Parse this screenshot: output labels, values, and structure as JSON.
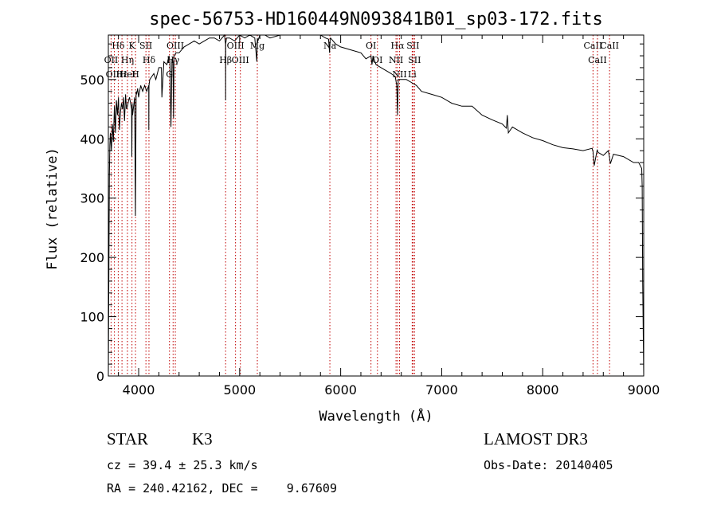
{
  "chart_data": {
    "type": "line",
    "title": "spec-56753-HD160449N093841B01_sp03-172.fits",
    "xlabel": "Wavelength (Å)",
    "ylabel": "Flux (relative)",
    "xlim": [
      3700,
      9000
    ],
    "ylim": [
      0,
      575
    ],
    "xticks": [
      4000,
      5000,
      6000,
      7000,
      8000,
      9000
    ],
    "yticks": [
      0,
      100,
      200,
      300,
      400,
      500
    ],
    "series": [
      {
        "name": "spectrum",
        "x": [
          3700,
          3705,
          3710,
          3715,
          3720,
          3730,
          3740,
          3750,
          3760,
          3770,
          3780,
          3790,
          3800,
          3810,
          3820,
          3830,
          3840,
          3850,
          3860,
          3870,
          3880,
          3890,
          3900,
          3910,
          3920,
          3930,
          3933,
          3936,
          3940,
          3950,
          3960,
          3968,
          3975,
          3980,
          3990,
          4000,
          4020,
          4040,
          4060,
          4080,
          4100,
          4101,
          4102,
          4110,
          4130,
          4150,
          4170,
          4200,
          4225,
          4230,
          4250,
          4280,
          4300,
          4310,
          4320,
          4330,
          4340,
          4345,
          4350,
          4370,
          4400,
          4450,
          4500,
          4550,
          4600,
          4650,
          4700,
          4750,
          4800,
          4850,
          4860,
          4861,
          4862,
          4870,
          4900,
          4950,
          5000,
          5050,
          5100,
          5150,
          5170,
          5175,
          5180,
          5200,
          5250,
          5300,
          5400,
          5500,
          5600,
          5700,
          5800,
          5850,
          5880,
          5890,
          5896,
          5900,
          5950,
          6000,
          6100,
          6200,
          6250,
          6300,
          6310,
          6320,
          6350,
          6400,
          6450,
          6500,
          6540,
          6555,
          6563,
          6570,
          6580,
          6600,
          6650,
          6700,
          6750,
          6800,
          6900,
          7000,
          7100,
          7200,
          7300,
          7400,
          7500,
          7600,
          7640,
          7650,
          7660,
          7700,
          7800,
          7900,
          8000,
          8100,
          8200,
          8300,
          8400,
          8490,
          8498,
          8510,
          8540,
          8542,
          8550,
          8600,
          8650,
          8662,
          8670,
          8700,
          8800,
          8900,
          8950,
          8980,
          8985,
          8990,
          9000
        ],
        "y": [
          0,
          160,
          340,
          390,
          410,
          380,
          425,
          395,
          455,
          410,
          465,
          440,
          470,
          415,
          445,
          460,
          450,
          470,
          430,
          475,
          450,
          455,
          465,
          470,
          460,
          450,
          370,
          460,
          440,
          455,
          470,
          270,
          480,
          475,
          485,
          470,
          490,
          480,
          490,
          480,
          490,
          415,
          490,
          500,
          505,
          510,
          500,
          520,
          520,
          470,
          530,
          525,
          540,
          530,
          420,
          535,
          530,
          435,
          540,
          545,
          545,
          555,
          560,
          565,
          560,
          565,
          570,
          570,
          565,
          575,
          560,
          465,
          560,
          570,
          570,
          565,
          575,
          570,
          575,
          570,
          530,
          570,
          565,
          575,
          575,
          570,
          575,
          575,
          575,
          578,
          575,
          570,
          568,
          545,
          568,
          570,
          560,
          555,
          550,
          545,
          535,
          540,
          525,
          540,
          525,
          520,
          515,
          510,
          505,
          490,
          440,
          500,
          500,
          500,
          500,
          495,
          490,
          480,
          475,
          470,
          460,
          455,
          455,
          440,
          432,
          425,
          418,
          440,
          410,
          420,
          410,
          402,
          397,
          390,
          385,
          383,
          380,
          384,
          378,
          355,
          382,
          379,
          377,
          372,
          380,
          368,
          358,
          374,
          370,
          360,
          360,
          350,
          320,
          160,
          0
        ]
      }
    ],
    "lines": [
      {
        "label": "Hδ",
        "x": 3798
      },
      {
        "label": "OII",
        "x": 3727
      },
      {
        "label": "OIII",
        "x": 3760
      },
      {
        "label": "Hε",
        "x": 3835
      },
      {
        "label": "Hη",
        "x": 3889
      },
      {
        "label": "K",
        "x": 3934
      },
      {
        "label": "H",
        "x": 3969
      },
      {
        "label": "HeI",
        "x": 3889
      },
      {
        "label": "SII",
        "x": 4072
      },
      {
        "label": "Hδ",
        "x": 4102
      },
      {
        "label": "OIII",
        "x": 4363
      },
      {
        "label": "Hγ",
        "x": 4341
      },
      {
        "label": "G",
        "x": 4305
      },
      {
        "label": "OIII",
        "x": 4959
      },
      {
        "label": "OIII",
        "x": 5007
      },
      {
        "label": "Hβ",
        "x": 4861
      },
      {
        "label": "Mg",
        "x": 5175
      },
      {
        "label": "Na",
        "x": 5893
      },
      {
        "label": "OI",
        "x": 6300
      },
      {
        "label": "OI",
        "x": 6364
      },
      {
        "label": "Hα",
        "x": 6563
      },
      {
        "label": "NII",
        "x": 6548
      },
      {
        "label": "NII",
        "x": 6583
      },
      {
        "label": "SII",
        "x": 6716
      },
      {
        "label": "SII",
        "x": 6731
      },
      {
        "label": "Li",
        "x": 6708
      },
      {
        "label": "CaII",
        "x": 8498
      },
      {
        "label": "CaII",
        "x": 8542
      },
      {
        "label": "CaII",
        "x": 8662
      }
    ]
  },
  "info": {
    "class_label": "STAR",
    "subclass": "K3",
    "survey": "LAMOST DR3",
    "cz": "cz = 39.4 ± 25.3 km/s",
    "obs_date": "Obs-Date: 20140405",
    "radec": "RA = 240.42162, DEC =    9.67609"
  }
}
